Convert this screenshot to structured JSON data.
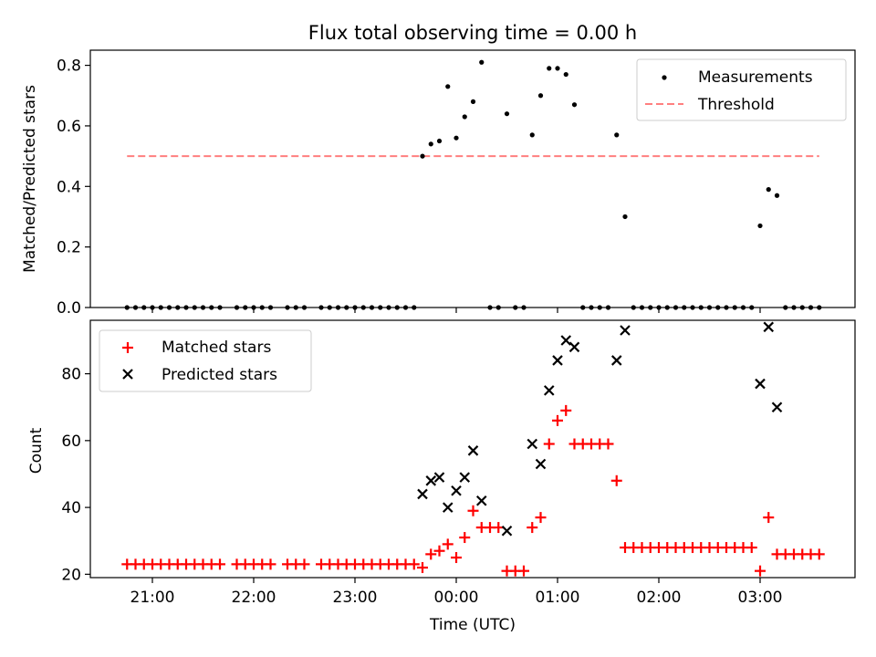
{
  "chart_data": [
    {
      "type": "scatter",
      "title": "Flux total observing time = 0.00 h",
      "xlabel": "",
      "ylabel": "Matched/Predicted stars",
      "ylim": [
        0,
        0.85
      ],
      "yticks": [
        0.0,
        0.2,
        0.4,
        0.6,
        0.8
      ],
      "ytick_labels": [
        "0.0",
        "0.2",
        "0.4",
        "0.6",
        "0.8"
      ],
      "legend_position": "top-right",
      "series": [
        {
          "name": "Measurements",
          "color": "#000000",
          "marker": "dot",
          "x": [
            "20:45",
            "20:50",
            "20:55",
            "21:00",
            "21:05",
            "21:10",
            "21:15",
            "21:20",
            "21:25",
            "21:30",
            "21:35",
            "21:40",
            "21:50",
            "21:55",
            "22:00",
            "22:05",
            "22:10",
            "22:20",
            "22:25",
            "22:30",
            "22:40",
            "22:45",
            "22:50",
            "22:55",
            "23:00",
            "23:05",
            "23:10",
            "23:15",
            "23:20",
            "23:25",
            "23:30",
            "23:35",
            "23:40",
            "23:45",
            "23:50",
            "23:55",
            "00:00",
            "00:05",
            "00:10",
            "00:15",
            "00:20",
            "00:25",
            "00:30",
            "00:35",
            "00:40",
            "00:45",
            "00:50",
            "00:55",
            "01:00",
            "01:05",
            "01:10",
            "01:15",
            "01:20",
            "01:25",
            "01:30",
            "01:35",
            "01:40",
            "01:45",
            "01:50",
            "01:55",
            "02:00",
            "02:05",
            "02:10",
            "02:15",
            "02:20",
            "02:25",
            "02:30",
            "02:35",
            "02:40",
            "02:45",
            "02:50",
            "02:55",
            "03:00",
            "03:05",
            "03:10",
            "03:15",
            "03:20",
            "03:25",
            "03:30",
            "03:35"
          ],
          "y": [
            0,
            0,
            0,
            0,
            0,
            0,
            0,
            0,
            0,
            0,
            0,
            0,
            0,
            0,
            0,
            0,
            0,
            0,
            0,
            0,
            0,
            0,
            0,
            0,
            0,
            0,
            0,
            0,
            0,
            0,
            0,
            0,
            0.5,
            0.54,
            0.55,
            0.73,
            0.56,
            0.63,
            0.68,
            0.81,
            0,
            0,
            0.64,
            0,
            0,
            0.57,
            0.7,
            0.79,
            0.79,
            0.77,
            0.67,
            0,
            0,
            0,
            0,
            0.57,
            0.3,
            0,
            0,
            0,
            0,
            0,
            0,
            0,
            0,
            0,
            0,
            0,
            0,
            0,
            0,
            0,
            0.27,
            0.39,
            0.37,
            0,
            0,
            0,
            0,
            0
          ]
        },
        {
          "name": "Threshold",
          "color": "#ff7f7f",
          "style": "dashed",
          "x": [
            "20:45",
            "03:35"
          ],
          "y": [
            0.5,
            0.5
          ]
        }
      ]
    },
    {
      "type": "scatter",
      "title": "",
      "xlabel": "Time (UTC)",
      "ylabel": "Count",
      "ylim": [
        19,
        96
      ],
      "yticks": [
        20,
        40,
        60,
        80
      ],
      "ytick_labels": [
        "20",
        "40",
        "60",
        "80"
      ],
      "xticks": [
        "21:00",
        "22:00",
        "23:00",
        "00:00",
        "01:00",
        "02:00",
        "03:00"
      ],
      "legend_position": "top-left",
      "series": [
        {
          "name": "Matched stars",
          "color": "#ff0000",
          "marker": "plus",
          "x": [
            "20:45",
            "20:50",
            "20:55",
            "21:00",
            "21:05",
            "21:10",
            "21:15",
            "21:20",
            "21:25",
            "21:30",
            "21:35",
            "21:40",
            "21:50",
            "21:55",
            "22:00",
            "22:05",
            "22:10",
            "22:20",
            "22:25",
            "22:30",
            "22:40",
            "22:45",
            "22:50",
            "22:55",
            "23:00",
            "23:05",
            "23:10",
            "23:15",
            "23:20",
            "23:25",
            "23:30",
            "23:35",
            "23:40",
            "23:45",
            "23:50",
            "23:55",
            "00:00",
            "00:05",
            "00:10",
            "00:15",
            "00:20",
            "00:25",
            "00:30",
            "00:35",
            "00:40",
            "00:45",
            "00:50",
            "00:55",
            "01:00",
            "01:05",
            "01:10",
            "01:15",
            "01:20",
            "01:25",
            "01:30",
            "01:35",
            "01:40",
            "01:45",
            "01:50",
            "01:55",
            "02:00",
            "02:05",
            "02:10",
            "02:15",
            "02:20",
            "02:25",
            "02:30",
            "02:35",
            "02:40",
            "02:45",
            "02:50",
            "02:55",
            "03:00",
            "03:05",
            "03:10",
            "03:15",
            "03:20",
            "03:25",
            "03:30",
            "03:35"
          ],
          "y": [
            23,
            23,
            23,
            23,
            23,
            23,
            23,
            23,
            23,
            23,
            23,
            23,
            23,
            23,
            23,
            23,
            23,
            23,
            23,
            23,
            23,
            23,
            23,
            23,
            23,
            23,
            23,
            23,
            23,
            23,
            23,
            23,
            22,
            26,
            27,
            29,
            25,
            31,
            39,
            34,
            34,
            34,
            21,
            21,
            21,
            34,
            37,
            59,
            66,
            69,
            59,
            59,
            59,
            59,
            59,
            48,
            28,
            28,
            28,
            28,
            28,
            28,
            28,
            28,
            28,
            28,
            28,
            28,
            28,
            28,
            28,
            28,
            21,
            37,
            26,
            26,
            26,
            26,
            26,
            26
          ]
        },
        {
          "name": "Predicted stars",
          "color": "#000000",
          "marker": "x",
          "x": [
            "23:40",
            "23:45",
            "23:50",
            "23:55",
            "00:00",
            "00:05",
            "00:10",
            "00:15",
            "00:30",
            "00:45",
            "00:50",
            "00:55",
            "01:00",
            "01:05",
            "01:10",
            "01:35",
            "01:40",
            "03:00",
            "03:05",
            "03:10"
          ],
          "y": [
            44,
            48,
            49,
            40,
            45,
            49,
            57,
            42,
            33,
            59,
            53,
            75,
            84,
            90,
            88,
            84,
            93,
            77,
            94,
            70
          ]
        }
      ]
    }
  ]
}
